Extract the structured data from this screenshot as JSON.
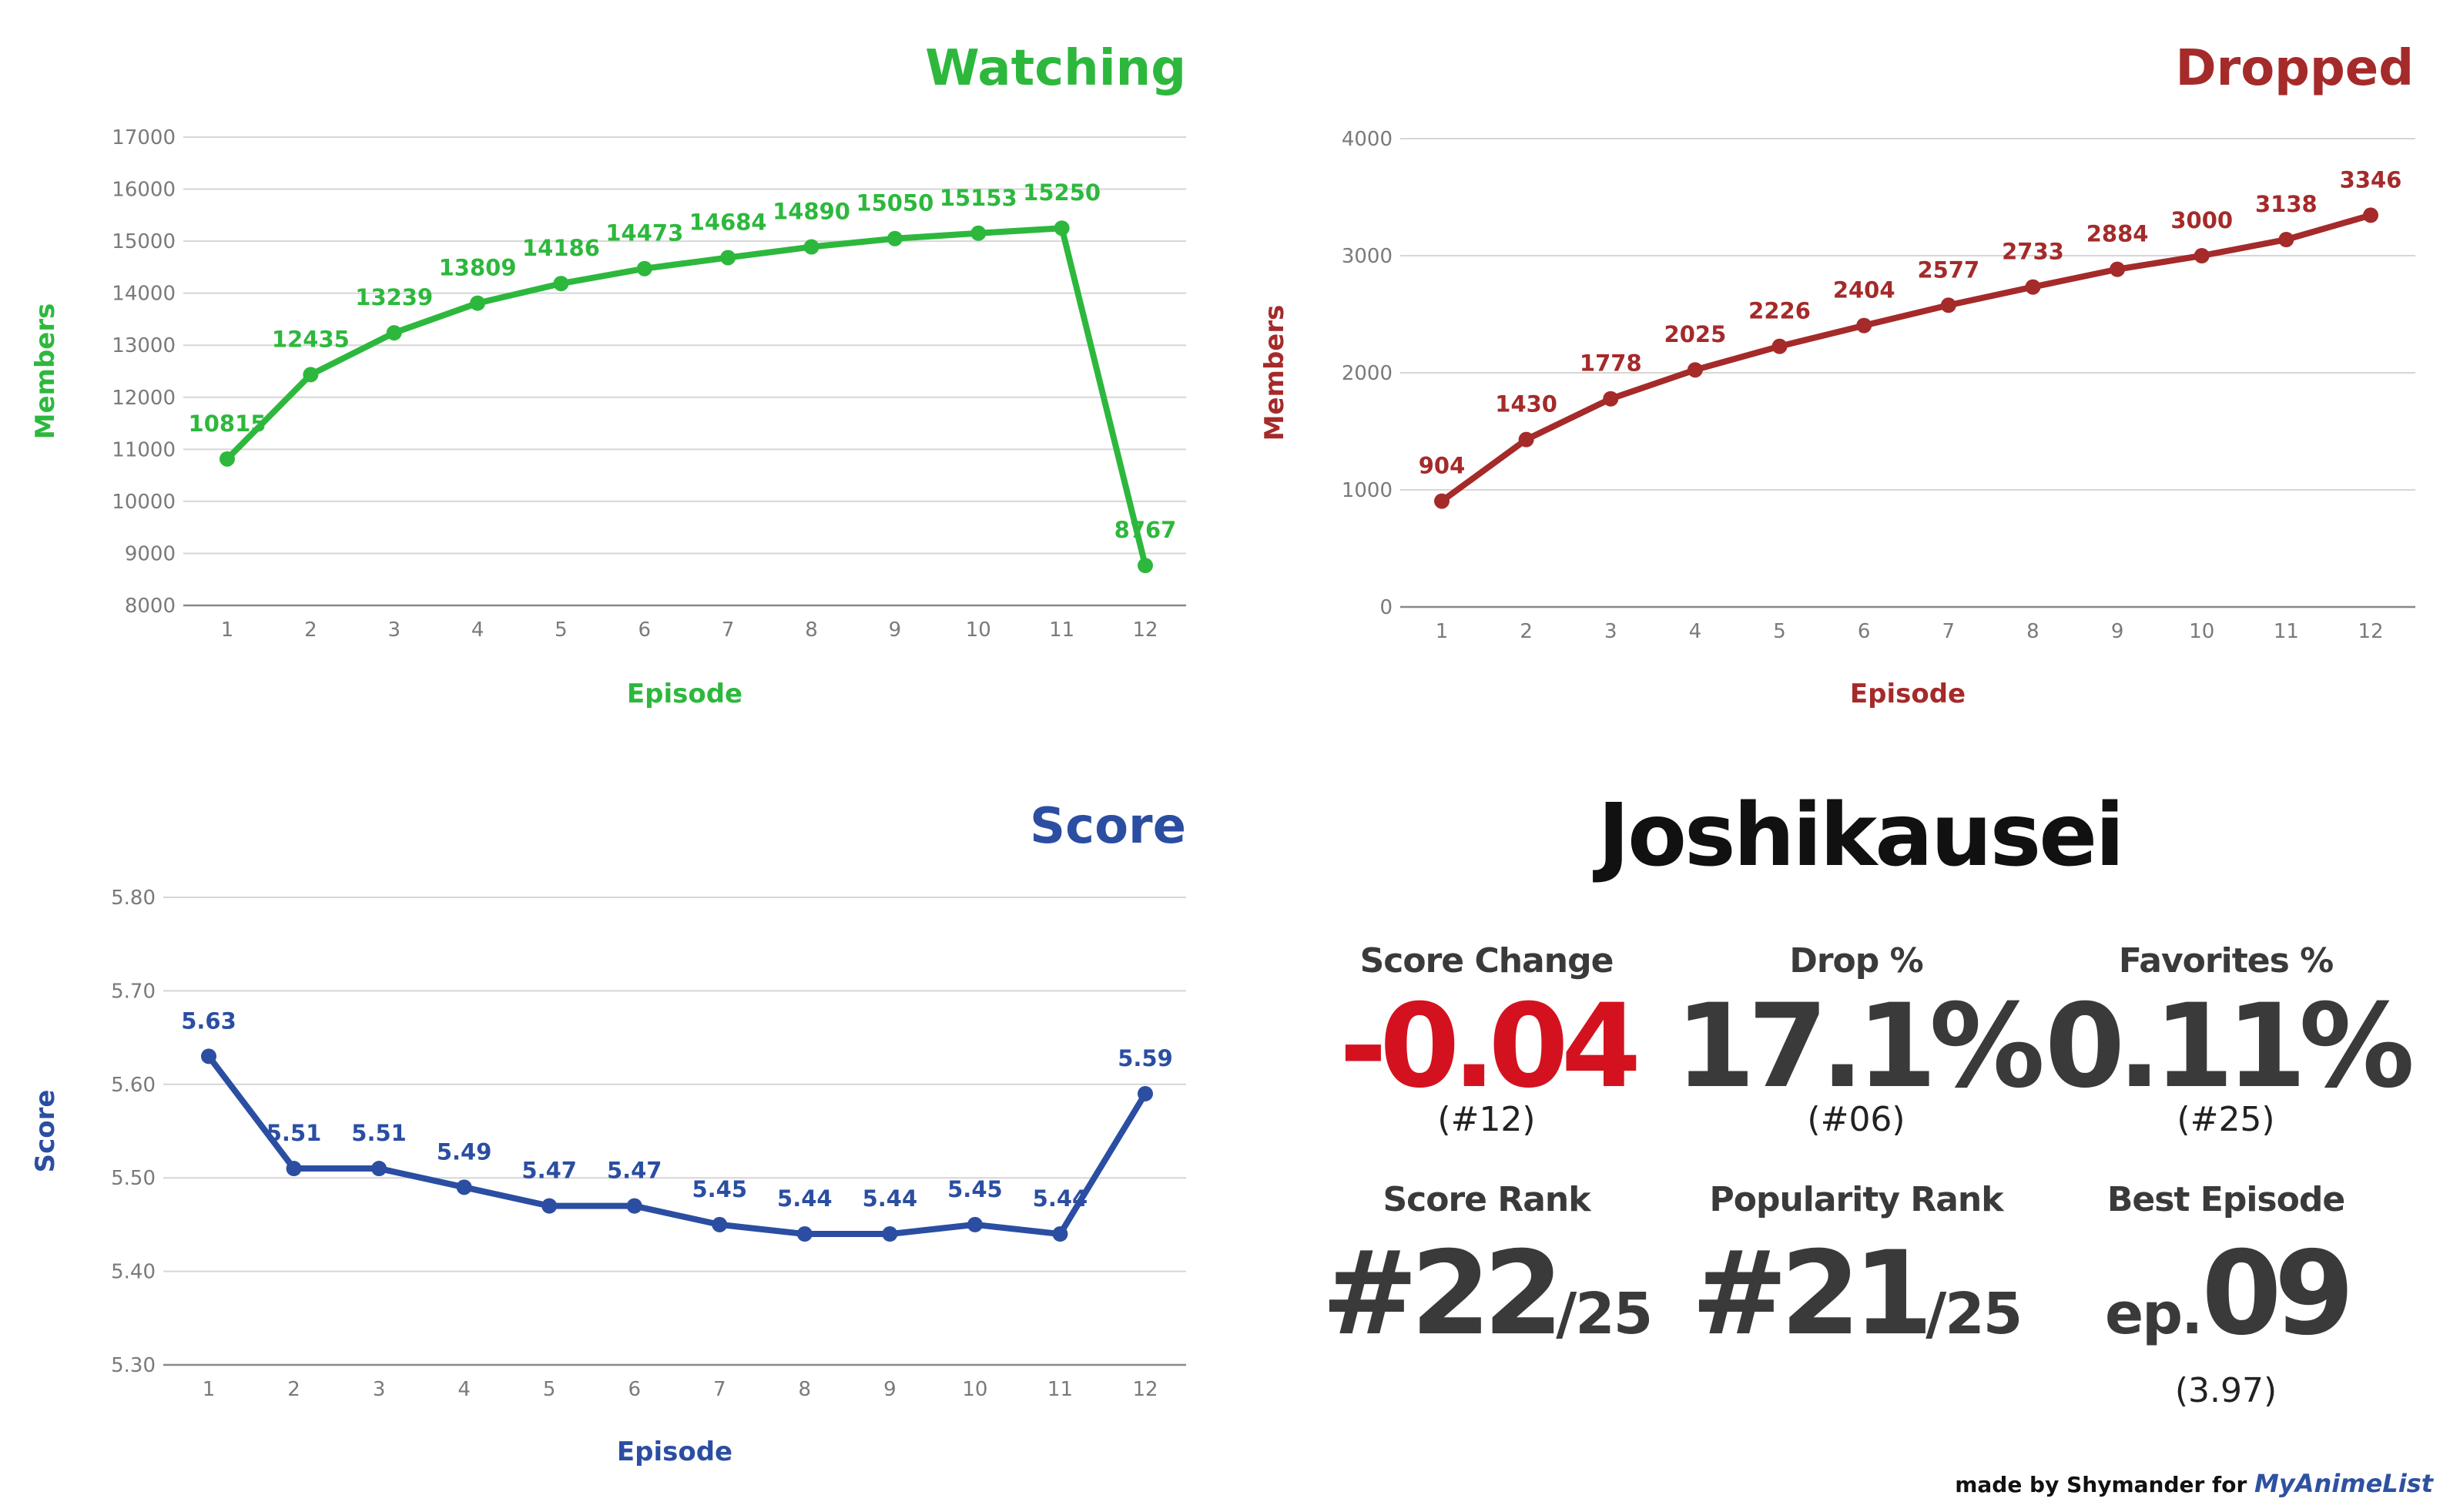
{
  "chart_data": [
    {
      "type": "line",
      "title": "Watching",
      "xlabel": "Episode",
      "ylabel": "Members",
      "color": "#2db83d",
      "categories": [
        "1",
        "2",
        "3",
        "4",
        "5",
        "6",
        "7",
        "8",
        "9",
        "10",
        "11",
        "12"
      ],
      "values": [
        10815,
        12435,
        13239,
        13809,
        14186,
        14473,
        14684,
        14890,
        15050,
        15153,
        15250,
        8767
      ],
      "data_labels": [
        "10815",
        "12435",
        "13239",
        "13809",
        "14186",
        "14473",
        "14684",
        "14890",
        "15050",
        "15153",
        "15250",
        "8767"
      ],
      "ylim": [
        8000,
        17000
      ],
      "yticks": [
        "8000",
        "9000",
        "10000",
        "11000",
        "12000",
        "13000",
        "14000",
        "15000",
        "16000",
        "17000"
      ],
      "grid": true
    },
    {
      "type": "line",
      "title": "Dropped",
      "xlabel": "Episode",
      "ylabel": "Members",
      "color": "#a52a2a",
      "categories": [
        "1",
        "2",
        "3",
        "4",
        "5",
        "6",
        "7",
        "8",
        "9",
        "10",
        "11",
        "12"
      ],
      "values": [
        904,
        1430,
        1778,
        2025,
        2226,
        2404,
        2577,
        2733,
        2884,
        3000,
        3138,
        3346
      ],
      "data_labels": [
        "904",
        "1430",
        "1778",
        "2025",
        "2226",
        "2404",
        "2577",
        "2733",
        "2884",
        "3000",
        "3138",
        "3346"
      ],
      "ylim": [
        0,
        4000
      ],
      "yticks": [
        "0",
        "1000",
        "2000",
        "3000",
        "4000"
      ],
      "grid": true
    },
    {
      "type": "line",
      "title": "Score",
      "xlabel": "Episode",
      "ylabel": "Score",
      "color": "#2b4ea2",
      "categories": [
        "1",
        "2",
        "3",
        "4",
        "5",
        "6",
        "7",
        "8",
        "9",
        "10",
        "11",
        "12"
      ],
      "values": [
        5.63,
        5.51,
        5.51,
        5.49,
        5.47,
        5.47,
        5.45,
        5.44,
        5.44,
        5.45,
        5.44,
        5.59
      ],
      "data_labels": [
        "5.63",
        "5.51",
        "5.51",
        "5.49",
        "5.47",
        "5.47",
        "5.45",
        "5.44",
        "5.44",
        "5.45",
        "5.44",
        "5.59"
      ],
      "ylim": [
        5.3,
        5.8
      ],
      "yticks": [
        "5.30",
        "5.40",
        "5.50",
        "5.60",
        "5.70",
        "5.80"
      ],
      "grid": true
    }
  ],
  "summary": {
    "show_title": "Joshikausei",
    "score_change": {
      "label": "Score Change",
      "value": "-0.04",
      "rank": "(#12)",
      "color": "#d4121f"
    },
    "drop_pct": {
      "label": "Drop %",
      "value": "17.1%",
      "rank": "(#06)"
    },
    "favorites_pct": {
      "label": "Favorites %",
      "value": "0.11%",
      "rank": "(#25)"
    },
    "score_rank": {
      "label": "Score Rank",
      "value": "#22",
      "total": "/25"
    },
    "popularity_rank": {
      "label": "Popularity Rank",
      "value": "#21",
      "total": "/25"
    },
    "best_episode": {
      "label": "Best Episode",
      "prefix": "ep.",
      "value": "09",
      "score": "(3.97)"
    }
  },
  "footer": {
    "made_by": "made by Shymander for ",
    "brand": "MyAnimeList"
  }
}
